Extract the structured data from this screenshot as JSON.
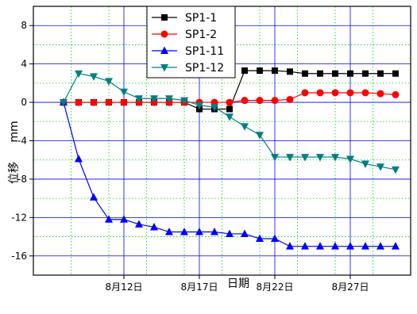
{
  "chart_data": {
    "type": "line",
    "xlabel": "日期",
    "ylabel": "位移",
    "ylabel_unit": "mm",
    "x": [
      "8/8",
      "8/9",
      "8/10",
      "8/11",
      "8/12",
      "8/13",
      "8/14",
      "8/15",
      "8/16",
      "8/17",
      "8/18",
      "8/19",
      "8/20",
      "8/21",
      "8/22",
      "8/23",
      "8/24",
      "8/25",
      "8/26",
      "8/27",
      "8/28",
      "8/29",
      "8/30"
    ],
    "x_range": [
      "8/6",
      "8/31"
    ],
    "ylim": [
      -18,
      10
    ],
    "y_ticks": [
      {
        "value": 8,
        "label": "8"
      },
      {
        "value": 4,
        "label": "4"
      },
      {
        "value": 0,
        "label": "0"
      },
      {
        "value": -4,
        "label": "-4"
      },
      {
        "value": -8,
        "label": "-8"
      },
      {
        "value": -12,
        "label": "-12"
      },
      {
        "value": -16,
        "label": "-16"
      }
    ],
    "x_ticks": [
      {
        "value": "8/12",
        "label": "8月12日"
      },
      {
        "value": "8/17",
        "label": "8月17日"
      },
      {
        "value": "8/22",
        "label": "8月22日"
      },
      {
        "value": "8/27",
        "label": "8月27日"
      }
    ],
    "grid": true,
    "legend_position": "top-center",
    "series": [
      {
        "name": "SP1-1",
        "color": "#000000",
        "marker": "square",
        "values": [
          0,
          0,
          0,
          0,
          0,
          0,
          0,
          0,
          0,
          -0.7,
          -0.7,
          -0.7,
          3.3,
          3.3,
          3.3,
          3.2,
          3.0,
          3.0,
          3.0,
          3.0,
          3.0,
          3.0,
          3.0
        ]
      },
      {
        "name": "SP1-2",
        "color": "#ff0000",
        "marker": "circle",
        "values": [
          0,
          0,
          0,
          0,
          0,
          0,
          0,
          0,
          0,
          0,
          0,
          0,
          0.2,
          0.2,
          0.2,
          0.3,
          1.0,
          1.0,
          1.0,
          1.0,
          1.0,
          0.9,
          0.8
        ]
      },
      {
        "name": "SP1-11",
        "color": "#0000ff",
        "marker": "triangle-up",
        "values": [
          0,
          -5.9,
          -9.9,
          -12.2,
          -12.2,
          -12.7,
          -13.0,
          -13.5,
          -13.5,
          -13.5,
          -13.5,
          -13.7,
          -13.7,
          -14.2,
          -14.2,
          -15.0,
          -15.0,
          -15.0,
          -15.0,
          -15.0,
          -15.0,
          -15.0,
          -15.0
        ]
      },
      {
        "name": "SP1-12",
        "color": "#008080",
        "marker": "triangle-down",
        "values": [
          0,
          3.0,
          2.7,
          2.2,
          1.1,
          0.4,
          0.4,
          0.4,
          0.2,
          -0.3,
          -0.5,
          -1.5,
          -2.5,
          -3.4,
          -5.7,
          -5.7,
          -5.7,
          -5.7,
          -5.7,
          -5.9,
          -6.4,
          -6.7,
          -7.0
        ]
      }
    ]
  }
}
